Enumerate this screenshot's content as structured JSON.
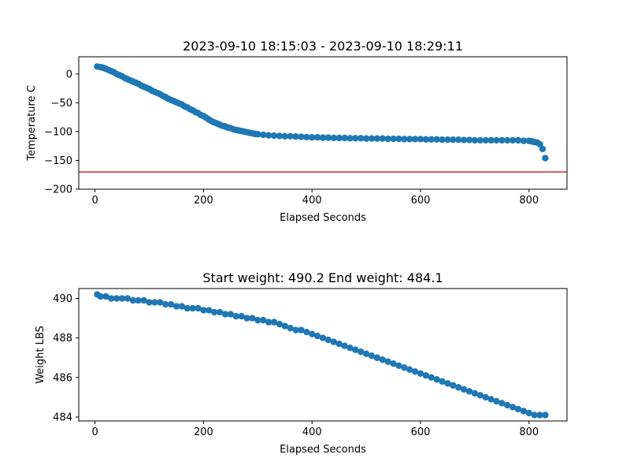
{
  "figure": {
    "background": "#ffffff",
    "series_color": "#1f77b4",
    "threshold_color": "#d62728"
  },
  "chart_data": [
    {
      "type": "scatter",
      "title": "2023-09-10 18:15:03 - 2023-09-10 18:29:11",
      "xlabel": "Elapsed Seconds",
      "ylabel": "Temperature C",
      "xlim": [
        -30,
        870
      ],
      "ylim": [
        -200,
        30
      ],
      "xticks": [
        0,
        200,
        400,
        600,
        800
      ],
      "yticks": [
        0,
        -50,
        -100,
        -150,
        -200
      ],
      "grid": false,
      "threshold_line": {
        "y": -170,
        "color": "#d62728"
      },
      "series": [
        {
          "color": "#1f77b4",
          "x": [
            4,
            10,
            15,
            20,
            25,
            30,
            35,
            40,
            45,
            50,
            55,
            60,
            65,
            70,
            75,
            80,
            85,
            90,
            95,
            100,
            105,
            110,
            115,
            120,
            125,
            130,
            135,
            140,
            145,
            150,
            155,
            160,
            165,
            170,
            175,
            180,
            185,
            190,
            195,
            200,
            205,
            210,
            215,
            220,
            225,
            230,
            235,
            240,
            245,
            250,
            255,
            260,
            265,
            270,
            275,
            280,
            285,
            290,
            295,
            300,
            310,
            320,
            330,
            340,
            350,
            360,
            370,
            380,
            390,
            400,
            410,
            420,
            430,
            440,
            450,
            460,
            470,
            480,
            490,
            500,
            510,
            520,
            530,
            540,
            550,
            560,
            570,
            580,
            590,
            600,
            610,
            620,
            630,
            640,
            650,
            660,
            670,
            680,
            690,
            700,
            710,
            720,
            730,
            740,
            750,
            760,
            770,
            780,
            790,
            800,
            805,
            810,
            815,
            820,
            825,
            830
          ],
          "y": [
            13,
            12,
            11,
            9,
            7,
            5,
            3,
            0,
            -2,
            -4,
            -7,
            -9,
            -11,
            -13,
            -15,
            -17,
            -20,
            -22,
            -24,
            -26,
            -29,
            -31,
            -33,
            -35,
            -38,
            -40,
            -43,
            -45,
            -47,
            -49,
            -51,
            -53,
            -56,
            -58,
            -61,
            -63,
            -66,
            -68,
            -71,
            -73,
            -76,
            -79,
            -82,
            -84,
            -86,
            -88,
            -90,
            -91,
            -93,
            -94,
            -96,
            -97,
            -98,
            -99,
            -100,
            -101,
            -102,
            -103,
            -104,
            -104.5,
            -105.5,
            -106.5,
            -107,
            -107.5,
            -108,
            -108,
            -108.5,
            -109,
            -109.5,
            -110,
            -110,
            -110.5,
            -110.5,
            -111,
            -111,
            -111,
            -111.5,
            -111.5,
            -111.5,
            -112,
            -112,
            -112,
            -112,
            -112.5,
            -112.5,
            -112.5,
            -113,
            -113,
            -113,
            -113,
            -113.5,
            -113.5,
            -113.5,
            -114,
            -114,
            -114,
            -114,
            -114.5,
            -114.5,
            -115,
            -115,
            -115,
            -115,
            -115,
            -115,
            -115,
            -115,
            -115,
            -116,
            -116,
            -117,
            -118,
            -119,
            -122,
            -130,
            -146
          ]
        }
      ]
    },
    {
      "type": "scatter",
      "title": "Start weight: 490.2 End weight: 484.1",
      "xlabel": "Elapsed Seconds",
      "ylabel": "Weight LBS",
      "xlim": [
        -30,
        870
      ],
      "ylim": [
        483.8,
        490.5
      ],
      "xticks": [
        0,
        200,
        400,
        600,
        800
      ],
      "yticks": [
        484,
        486,
        488,
        490
      ],
      "grid": false,
      "series": [
        {
          "color": "#1f77b4",
          "x": [
            4,
            10,
            20,
            30,
            40,
            50,
            60,
            70,
            80,
            90,
            100,
            110,
            120,
            130,
            140,
            150,
            160,
            170,
            180,
            190,
            200,
            210,
            220,
            230,
            240,
            250,
            260,
            270,
            280,
            290,
            300,
            310,
            320,
            330,
            340,
            350,
            360,
            370,
            380,
            390,
            400,
            410,
            420,
            430,
            440,
            450,
            460,
            470,
            480,
            490,
            500,
            510,
            520,
            530,
            540,
            550,
            560,
            570,
            580,
            590,
            600,
            610,
            620,
            630,
            640,
            650,
            660,
            670,
            680,
            690,
            700,
            710,
            720,
            730,
            740,
            750,
            760,
            770,
            780,
            790,
            800,
            810,
            820,
            830
          ],
          "y": [
            490.2,
            490.1,
            490.1,
            490.0,
            490.0,
            490.0,
            490.0,
            489.9,
            489.9,
            489.9,
            489.8,
            489.8,
            489.8,
            489.7,
            489.7,
            489.6,
            489.6,
            489.5,
            489.5,
            489.5,
            489.4,
            489.4,
            489.3,
            489.3,
            489.2,
            489.2,
            489.1,
            489.1,
            489.0,
            489.0,
            488.9,
            488.9,
            488.8,
            488.8,
            488.7,
            488.6,
            488.5,
            488.4,
            488.4,
            488.3,
            488.2,
            488.1,
            488.0,
            487.9,
            487.8,
            487.7,
            487.6,
            487.5,
            487.4,
            487.3,
            487.2,
            487.1,
            487.0,
            486.9,
            486.8,
            486.7,
            486.6,
            486.5,
            486.4,
            486.3,
            486.2,
            486.1,
            486.0,
            485.9,
            485.8,
            485.7,
            485.6,
            485.5,
            485.4,
            485.3,
            485.2,
            485.1,
            485.0,
            484.9,
            484.8,
            484.7,
            484.6,
            484.5,
            484.4,
            484.3,
            484.2,
            484.1,
            484.1,
            484.1
          ]
        }
      ]
    }
  ]
}
